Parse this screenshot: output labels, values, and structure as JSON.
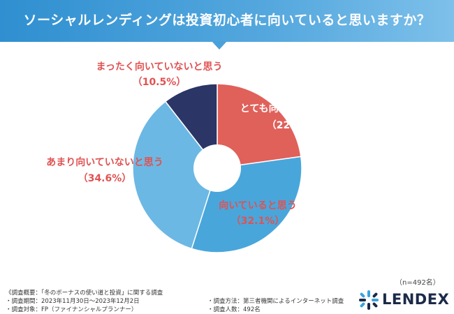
{
  "header": {
    "title": "ソーシャルレンディングは投資初心者に向いていると思いますか？"
  },
  "chart_data": {
    "type": "pie",
    "title": "ソーシャルレンディングは投資初心者に向いていると思いますか？",
    "donut": true,
    "categories": [
      "とても向いていると思う",
      "向いていると思う",
      "あまり向いていないと思う",
      "まったく向いていないと思う"
    ],
    "values": [
      22.8,
      32.1,
      34.6,
      10.5
    ],
    "value_labels": [
      "（22.8%）",
      "（32.1%）",
      "（34.6%）",
      "（10.5%）"
    ],
    "colors": [
      "#e0605a",
      "#49a6db",
      "#6cb8e4",
      "#2b3566"
    ],
    "legend": "none",
    "label_colors": [
      "#ffffff",
      "#e05252",
      "#e05252",
      "#e05252"
    ]
  },
  "sample_size": "（n=492名）",
  "footer": {
    "left": [
      "《調査概要：「冬のボーナスの使い道と投資」に関する調査",
      "・調査期間：2023年11月30日〜2023年12月2日",
      "・調査対象：FP（ファイナンシャルプランナー）"
    ],
    "right": [
      "・調査方法：第三者機関によるインターネット調査",
      "・調査人数：492名"
    ]
  },
  "logo": {
    "text": "LENDEX",
    "icon": "lendex-logo-icon",
    "color": "#1b2a48"
  }
}
